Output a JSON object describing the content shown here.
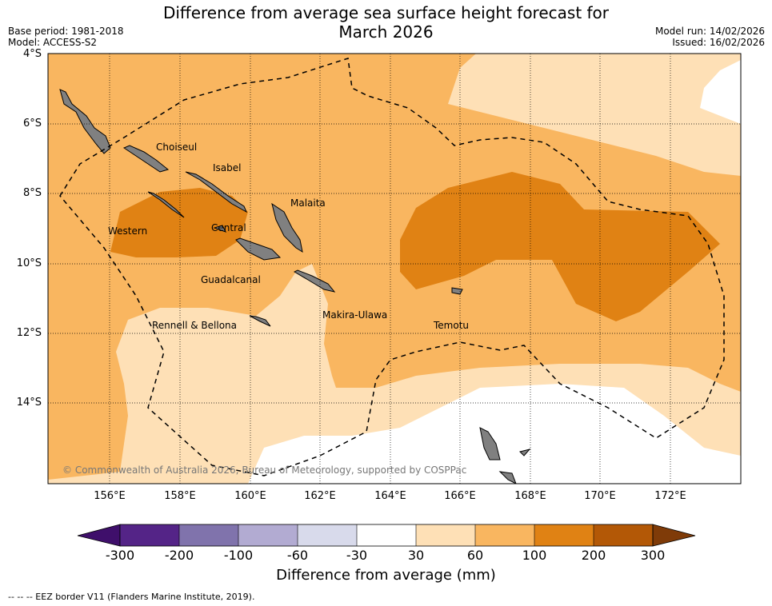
{
  "title_line1": "Difference from average sea surface height forecast for",
  "title_line2": "March 2026",
  "meta_left": {
    "base_period": "Base period: 1981-2018",
    "model": "Model: ACCESS-S2"
  },
  "meta_right": {
    "model_run": "Model run: 14/02/2026",
    "issued": "Issued: 16/02/2026"
  },
  "latitude_labels": [
    "4°S",
    "6°S",
    "8°S",
    "10°S",
    "12°S",
    "14°S"
  ],
  "longitude_labels": [
    "156°E",
    "158°E",
    "160°E",
    "162°E",
    "164°E",
    "166°E",
    "168°E",
    "170°E",
    "172°E"
  ],
  "provinces": [
    "Choiseul",
    "Isabel",
    "Malaita",
    "Western",
    "Central",
    "Guadalcanal",
    "Makira-Ulawa",
    "Rennell & Bellona",
    "Temotu"
  ],
  "copyright": "© Commonwealth of Australia 2026, Bureau of Meteorology, supported by COSPPac",
  "colorbar": {
    "title": "Difference from average (mm)",
    "ticks": [
      "-300",
      "-200",
      "-100",
      "-60",
      "-30",
      "30",
      "60",
      "100",
      "200",
      "300"
    ],
    "colors": [
      "#3f0f6b",
      "#542487",
      "#8073ac",
      "#b2abd2",
      "#d8daeb",
      "#ffffff",
      "#fee0b6",
      "#f9b660",
      "#e08214",
      "#b35806",
      "#7f3b08"
    ]
  },
  "footnote": "--  --  -- EEZ border V11 (Flanders Marine Institute, 2019)."
}
